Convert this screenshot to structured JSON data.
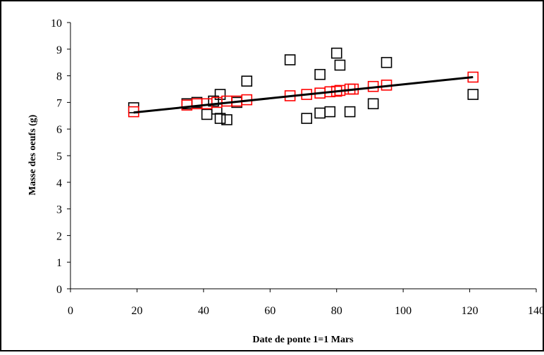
{
  "chart_data": {
    "type": "scatter",
    "xlabel": "Date de ponte 1=1 Mars",
    "ylabel": "Masse des oeufs (g)",
    "xlim": [
      0,
      140
    ],
    "ylim": [
      0,
      10
    ],
    "x_ticks": [
      "0",
      "20",
      "40",
      "60",
      "80",
      "100",
      "120",
      "140"
    ],
    "y_ticks": [
      "0",
      "1",
      "2",
      "3",
      "4",
      "5",
      "6",
      "7",
      "8",
      "9",
      "10"
    ],
    "grid": false,
    "legend": "none",
    "series": [
      {
        "marker": "open-square",
        "color": "#000000",
        "points": [
          [
            19,
            6.8
          ],
          [
            35,
            6.95
          ],
          [
            38,
            7.0
          ],
          [
            41,
            6.55
          ],
          [
            43,
            7.05
          ],
          [
            44,
            6.75
          ],
          [
            45,
            7.3
          ],
          [
            45,
            6.4
          ],
          [
            47,
            6.35
          ],
          [
            50,
            7.0
          ],
          [
            53,
            7.8
          ],
          [
            66,
            8.6
          ],
          [
            71,
            6.4
          ],
          [
            75,
            8.05
          ],
          [
            75,
            6.6
          ],
          [
            78,
            6.65
          ],
          [
            80,
            8.85
          ],
          [
            81,
            8.4
          ],
          [
            84,
            6.65
          ],
          [
            91,
            6.95
          ],
          [
            95,
            8.5
          ],
          [
            121,
            7.3
          ]
        ]
      },
      {
        "marker": "open-square",
        "color": "#ff0000",
        "points": [
          [
            19,
            6.65
          ],
          [
            35,
            6.9
          ],
          [
            38,
            6.95
          ],
          [
            41,
            6.95
          ],
          [
            44,
            7.0
          ],
          [
            47,
            7.05
          ],
          [
            50,
            7.05
          ],
          [
            53,
            7.1
          ],
          [
            66,
            7.25
          ],
          [
            71,
            7.3
          ],
          [
            75,
            7.35
          ],
          [
            78,
            7.4
          ],
          [
            80,
            7.42
          ],
          [
            81,
            7.45
          ],
          [
            84,
            7.5
          ],
          [
            85,
            7.5
          ],
          [
            91,
            7.6
          ],
          [
            95,
            7.65
          ],
          [
            121,
            7.95
          ]
        ]
      }
    ],
    "trendline": {
      "color": "#000000",
      "points": [
        [
          19,
          6.62
        ],
        [
          121,
          7.95
        ]
      ]
    }
  }
}
